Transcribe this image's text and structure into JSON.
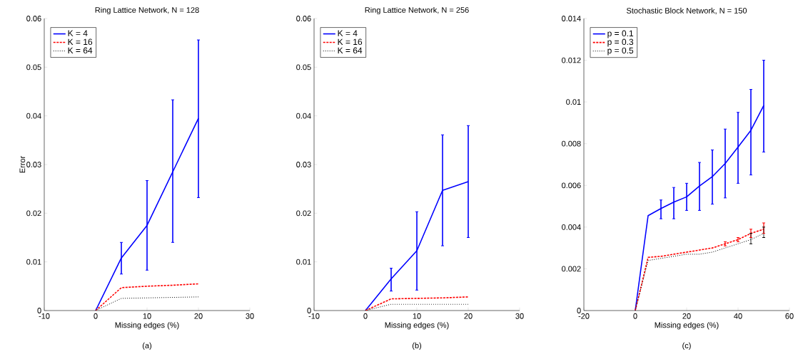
{
  "chart_data": [
    {
      "type": "line",
      "title": "Ring Lattice Network, N = 128",
      "xlabel": "Missing edges (%)",
      "ylabel": "Error",
      "annotations": [
        "(a)"
      ],
      "x": [
        0,
        5,
        10,
        15,
        20
      ],
      "xlim": [
        -10,
        30
      ],
      "xticks": [
        -10,
        0,
        10,
        20,
        30
      ],
      "ylim": [
        0,
        0.06
      ],
      "yticks": [
        0,
        0.01,
        0.02,
        0.03,
        0.04,
        0.05,
        0.06
      ],
      "legend": "top left",
      "grid": false,
      "marker": "none",
      "series": [
        {
          "name": "K = 4",
          "color": "#0000ff",
          "line_style": "solid",
          "values": [
            0,
            0.0108,
            0.0175,
            0.0285,
            0.0395
          ],
          "errors": [
            null,
            [
              0.0075,
              0.014
            ],
            [
              0.0083,
              0.0267
            ],
            [
              0.014,
              0.0433
            ],
            [
              0.0232,
              0.0556
            ]
          ]
        },
        {
          "name": "K = 16",
          "color": "#ff0000",
          "line_style": "dashed",
          "values": [
            0,
            0.0047,
            0.005,
            0.0052,
            0.0055
          ]
        },
        {
          "name": "K = 64",
          "color": "#000000",
          "line_style": "dotted",
          "values": [
            0,
            0.0025,
            0.0026,
            0.0027,
            0.0028
          ]
        }
      ]
    },
    {
      "type": "line",
      "title": "Ring Lattice Network, N = 256",
      "xlabel": "Missing edges (%)",
      "annotations": [
        "(b)"
      ],
      "x": [
        0,
        5,
        10,
        15,
        20
      ],
      "xlim": [
        -10,
        30
      ],
      "xticks": [
        -10,
        0,
        10,
        20,
        30
      ],
      "ylim": [
        0,
        0.06
      ],
      "yticks": [
        0,
        0.01,
        0.02,
        0.03,
        0.04,
        0.05,
        0.06
      ],
      "legend": "top left",
      "grid": false,
      "marker": "none",
      "series": [
        {
          "name": "K = 4",
          "color": "#0000ff",
          "line_style": "solid",
          "values": [
            0,
            0.0065,
            0.0123,
            0.0247,
            0.0265
          ],
          "errors": [
            null,
            [
              0.004,
              0.0087
            ],
            [
              0.0042,
              0.0203
            ],
            [
              0.0133,
              0.0361
            ],
            [
              0.015,
              0.038
            ]
          ]
        },
        {
          "name": "K = 16",
          "color": "#ff0000",
          "line_style": "dashed",
          "values": [
            0,
            0.0024,
            0.0025,
            0.0026,
            0.0028
          ]
        },
        {
          "name": "K = 64",
          "color": "#000000",
          "line_style": "dotted",
          "values": [
            0,
            0.0013,
            0.0013,
            0.0013,
            0.0013
          ]
        }
      ]
    },
    {
      "type": "line",
      "title": "Stochastic Block Network, N = 150",
      "xlabel": "Missing edges (%)",
      "annotations": [
        "(c)"
      ],
      "x": [
        0,
        5,
        10,
        15,
        20,
        25,
        30,
        35,
        40,
        45,
        50
      ],
      "xlim": [
        -20,
        60
      ],
      "xticks": [
        -20,
        0,
        20,
        40,
        60
      ],
      "ylim": [
        0,
        0.014
      ],
      "yticks": [
        0,
        0.002,
        0.004,
        0.006,
        0.008,
        0.01,
        0.012,
        0.014
      ],
      "legend": "top left",
      "grid": false,
      "marker": "none",
      "series": [
        {
          "name": "p = 0.1",
          "color": "#0000ff",
          "line_style": "solid",
          "values": [
            0,
            0.00455,
            0.00489,
            0.0052,
            0.00545,
            0.00597,
            0.00642,
            0.00705,
            0.00784,
            0.00864,
            0.00983
          ],
          "errors": [
            null,
            null,
            [
              0.0044,
              0.0053
            ],
            [
              0.0044,
              0.0059
            ],
            [
              0.0048,
              0.0061
            ],
            [
              0.0048,
              0.0071
            ],
            [
              0.0051,
              0.0077
            ],
            [
              0.0054,
              0.0087
            ],
            [
              0.0061,
              0.0095
            ],
            [
              0.0065,
              0.0106
            ],
            [
              0.0076,
              0.012
            ]
          ]
        },
        {
          "name": "p = 0.3",
          "color": "#ff0000",
          "line_style": "dashed",
          "values": [
            0,
            0.00255,
            0.0026,
            0.0027,
            0.0028,
            0.0029,
            0.003,
            0.0032,
            0.0034,
            0.0037,
            0.0039
          ],
          "errors": [
            null,
            null,
            null,
            null,
            null,
            null,
            null,
            [
              0.0031,
              0.0033
            ],
            [
              0.0033,
              0.0035
            ],
            [
              0.0035,
              0.0039
            ],
            [
              0.0037,
              0.0042
            ]
          ]
        },
        {
          "name": "p = 0.5",
          "color": "#000000",
          "line_style": "dotted",
          "values": [
            0,
            0.0024,
            0.0025,
            0.0026,
            0.0027,
            0.0027,
            0.0028,
            0.003,
            0.0032,
            0.0034,
            0.0037
          ],
          "errors": [
            null,
            null,
            null,
            null,
            null,
            null,
            null,
            null,
            null,
            [
              0.0032,
              0.0037
            ],
            [
              0.0035,
              0.004
            ]
          ]
        }
      ]
    }
  ]
}
